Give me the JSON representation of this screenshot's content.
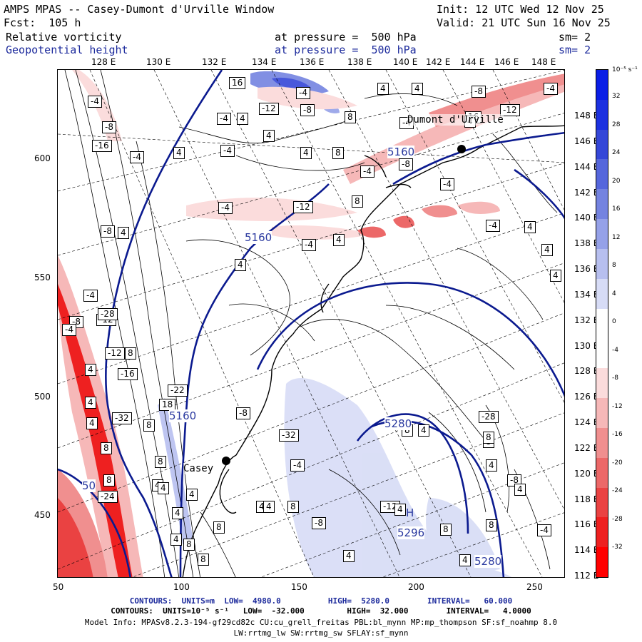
{
  "header": {
    "model": "AMPS MPAS -- Casey-Dumont d'Urville Window",
    "init": "Init: 12 UTC Wed 12 Nov 25",
    "fcst": "Fcst:  105 h",
    "valid": "Valid: 21 UTC Sun 16 Nov 25",
    "field1": "Relative vorticity",
    "field1_level": "at pressure =  500 hPa",
    "field1_sm": "sm= 2",
    "field2": "Geopotential height",
    "field2_level": "at pressure =  500 hPa",
    "field2_sm": "sm= 2"
  },
  "axes": {
    "x_ticks": [
      "50",
      "100",
      "150",
      "200",
      "250"
    ],
    "y_ticks": [
      "600",
      "550",
      "500",
      "450"
    ],
    "lon_top": [
      "128 E",
      "130 E",
      "132 E",
      "134 E",
      "136 E",
      "138 E",
      "140 E",
      "142 E",
      "144 E",
      "146 E",
      "148 E"
    ],
    "lat_right": [
      "148 E",
      "146 E",
      "144 E",
      "142 E",
      "140 E",
      "138 E",
      "136 E",
      "134 E",
      "132 E",
      "130 E",
      "128 E",
      "126 E",
      "124 E",
      "122 E",
      "120 E",
      "118 E",
      "116 E",
      "114 E",
      "112 E"
    ]
  },
  "colorbar": {
    "unit": "10⁻⁵ s⁻¹",
    "labels": [
      "32",
      "28",
      "24",
      "20",
      "16",
      "12",
      "8",
      "4",
      "0",
      "-4",
      "-8",
      "-12",
      "-16",
      "-20",
      "-24",
      "-28",
      "-32"
    ],
    "colors": [
      "#0a1ee6",
      "#1c31e0",
      "#3547d8",
      "#5566dc",
      "#7483e0",
      "#95a1e8",
      "#b7bfef",
      "#d7dcf6",
      "#ffffff",
      "#ffffff",
      "#fbdcdc",
      "#f6b8b8",
      "#f08f8f",
      "#ec6868",
      "#ea4242",
      "#ee2020",
      "#ff0000"
    ]
  },
  "map": {
    "stations": [
      "Casey",
      "Dumont d'Urville"
    ],
    "height_labels": [
      "5160",
      "5160",
      "5280",
      "5296",
      "5280",
      "5160",
      "50"
    ],
    "height_marks": [
      "H"
    ],
    "vort_labels": [
      "16",
      "-4",
      "4",
      "4",
      "-12",
      "-8",
      "-4",
      "8",
      "4",
      "4",
      "4",
      "8",
      "16",
      "-8",
      "-12",
      "-4",
      "4",
      "-4",
      "-4",
      "4",
      "-4",
      "-4",
      "-8",
      "-16",
      "-8",
      "4",
      "-4",
      "-4",
      "4",
      "-12",
      "8",
      "-4",
      "-8",
      "-4",
      "-4",
      "4",
      "4",
      "4",
      "4",
      "-4",
      "-8",
      "-12",
      "-4",
      "-28",
      "-12",
      "8",
      "4",
      "-16",
      "18",
      "4",
      "-22",
      "-8",
      "4",
      "-32",
      "8",
      "8",
      "-32",
      "-4",
      "8",
      "4",
      "-24",
      "8",
      "4",
      "-28",
      "8",
      "-12",
      "4",
      "-8",
      "8",
      "4",
      "-8",
      "4",
      "4",
      "8",
      "8",
      "4",
      "4",
      "4",
      "8",
      "8",
      "4",
      "8",
      "4",
      "8",
      "4",
      "4",
      "8",
      "-4"
    ]
  },
  "footer": {
    "line1_a": "CONTOURS:  UNITS=m  LOW=  4980.0",
    "line1_b": "HIGH=  5280.0",
    "line1_c": "INTERVAL=   60.000",
    "line2": "CONTOURS:  UNITS=10⁻⁵ s⁻¹   LOW=  -32.000         HIGH=  32.000        INTERVAL=   4.0000",
    "line3": "Model Info: MPASv8.2.3-194-gf29cd82c CU:cu_grell_freitas PBL:bl_mynn MP:mp_thompson SF:sf_noahmp 8.0",
    "line4": "LW:rrtmg_lw SW:rrtmg_sw SFLAY:sf_mynn"
  }
}
